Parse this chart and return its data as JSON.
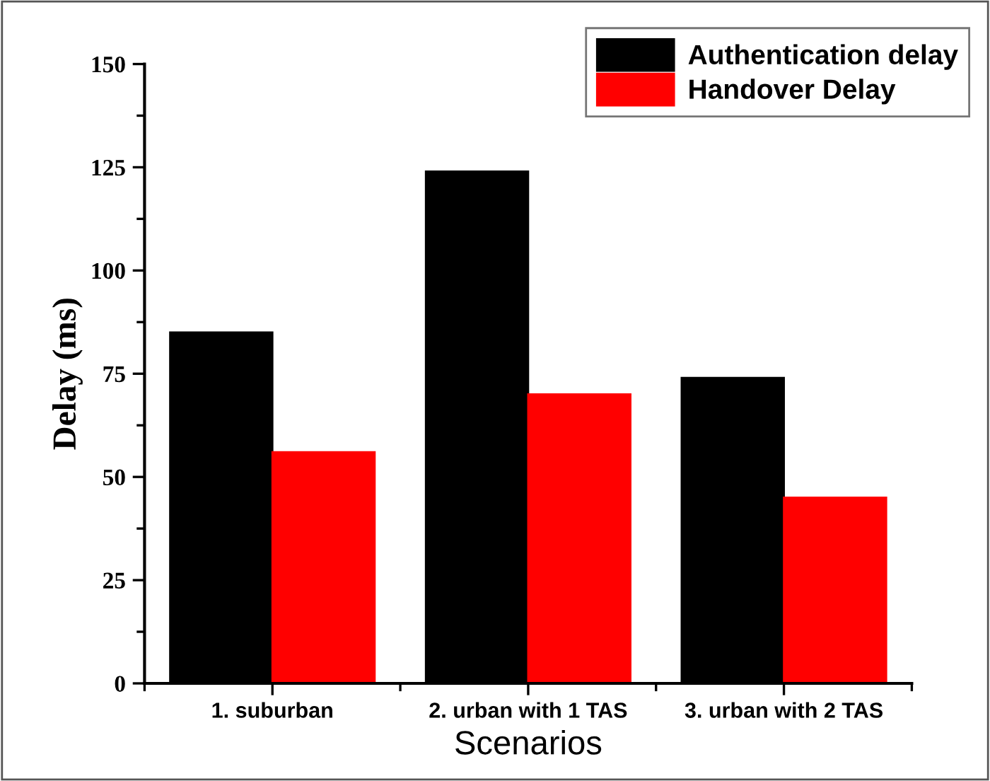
{
  "chart_data": {
    "type": "bar",
    "xlabel": "Scenarios",
    "ylabel": "Delay (ms)",
    "categories": [
      "1. suburban",
      "2. urban with 1 TAS",
      "3. urban with 2 TAS"
    ],
    "series": [
      {
        "name": "Authentication delay",
        "color": "#000000",
        "values": [
          85,
          124,
          74
        ]
      },
      {
        "name": "Handover Delay",
        "color": "#ff0000",
        "values": [
          56,
          70,
          45
        ]
      }
    ],
    "ylim": [
      0,
      150
    ],
    "yticks": [
      0,
      25,
      50,
      75,
      100,
      125,
      150
    ],
    "grid": false,
    "legend": "top right"
  }
}
